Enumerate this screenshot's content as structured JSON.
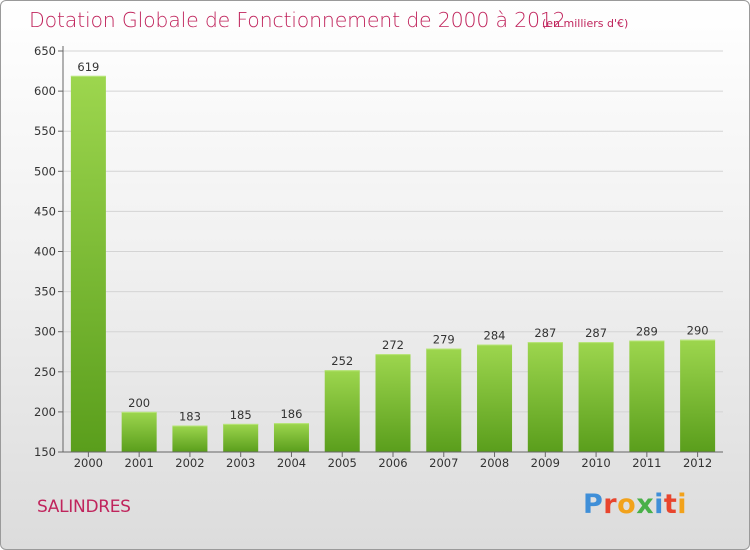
{
  "header": {
    "title": "Dotation Globale de Fonctionnement de 2000 à 2012",
    "subtitle": "(en milliers d'€)"
  },
  "footer": {
    "commune": "SALINDRES",
    "logo": {
      "letters": [
        "P",
        "r",
        "o",
        "x",
        "i",
        "t",
        "i"
      ],
      "colors": [
        "#3f8fd8",
        "#e8452e",
        "#f2a21b",
        "#48b048",
        "#3f8fd8",
        "#e8452e",
        "#f2a21b"
      ]
    }
  },
  "chart_data": {
    "type": "bar",
    "categories": [
      "2000",
      "2001",
      "2002",
      "2003",
      "2004",
      "2005",
      "2006",
      "2007",
      "2008",
      "2009",
      "2010",
      "2011",
      "2012"
    ],
    "values": [
      619,
      200,
      183,
      185,
      186,
      252,
      272,
      279,
      284,
      287,
      287,
      289,
      290
    ],
    "title": "Dotation Globale de Fonctionnement de 2000 à 2012",
    "subtitle": "(en milliers d'€)",
    "xlabel": "",
    "ylabel": "",
    "ylim": [
      150,
      650
    ],
    "yticks": [
      150,
      200,
      250,
      300,
      350,
      400,
      450,
      500,
      550,
      600,
      650
    ],
    "grid": true,
    "bar_color": "#7cc23a"
  }
}
